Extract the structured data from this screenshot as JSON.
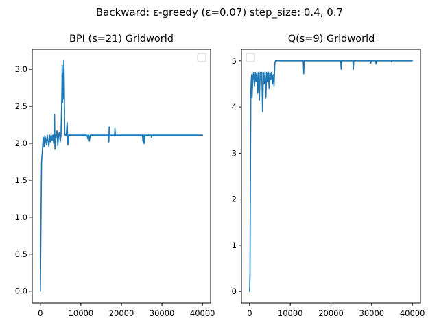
{
  "suptitle": "Backward: ε-greedy (ε=0.07) step_size: 0.4, 0.7",
  "colors": {
    "series": "#1f77b4"
  },
  "chart_data": [
    {
      "type": "line",
      "title": "BPI (s=21) Gridworld",
      "xlabel": "",
      "ylabel": "",
      "xlim": [
        -2000,
        42000
      ],
      "ylim": [
        -0.16,
        3.27
      ],
      "xticks": [
        0,
        10000,
        20000,
        30000,
        40000
      ],
      "xtick_labels": [
        "0",
        "10000",
        "20000",
        "30000",
        "40000"
      ],
      "yticks": [
        0.0,
        0.5,
        1.0,
        1.5,
        2.0,
        2.5,
        3.0
      ],
      "ytick_labels": [
        "0.0",
        "0.5",
        "1.0",
        "1.5",
        "2.0",
        "2.5",
        "3.0"
      ],
      "legend": "upper right, empty",
      "grid": false,
      "series": [
        {
          "x": [
            0,
            150,
            300,
            500,
            700,
            900,
            1100,
            1300,
            1500,
            1700,
            1900,
            2100,
            2300,
            2500,
            2700,
            2900,
            3100,
            3300,
            3500,
            3600,
            3700,
            3800,
            3900,
            4100,
            4300,
            4500,
            4700,
            4900,
            5100,
            5300,
            5400,
            5500,
            5600,
            5700,
            5800,
            5900,
            6000,
            6100,
            6200,
            6400,
            6600,
            6800,
            7000,
            7200,
            8000,
            10000,
            11500,
            11700,
            11900,
            12100,
            12300,
            12500,
            15000,
            16800,
            16900,
            17000,
            17100,
            17200,
            18000,
            18300,
            18400,
            18500,
            18600,
            20000,
            24000,
            25200,
            25300,
            25400,
            25500,
            25600,
            25700,
            25800,
            25900,
            26000,
            27000,
            27300,
            27400,
            27500,
            30000,
            35000,
            40000
          ],
          "y": [
            0.0,
            0.95,
            1.75,
            1.9,
            2.08,
            1.95,
            2.1,
            2.05,
            1.98,
            2.11,
            2.03,
            1.96,
            2.11,
            2.02,
            2.11,
            2.04,
            2.11,
            2.0,
            2.39,
            1.92,
            2.11,
            2.05,
            2.11,
            2.17,
            1.97,
            2.11,
            2.15,
            2.02,
            2.11,
            2.62,
            3.05,
            2.55,
            2.95,
            2.6,
            3.12,
            2.75,
            2.14,
            2.11,
            2.11,
            2.11,
            2.28,
            1.98,
            2.11,
            2.11,
            2.11,
            2.11,
            2.11,
            2.06,
            2.11,
            2.03,
            2.11,
            2.11,
            2.11,
            2.11,
            2.02,
            2.22,
            2.11,
            2.11,
            2.11,
            2.11,
            2.2,
            2.11,
            2.11,
            2.11,
            2.11,
            2.11,
            2.03,
            2.11,
            2.0,
            2.11,
            2.0,
            2.11,
            2.11,
            2.11,
            2.11,
            2.11,
            2.08,
            2.11,
            2.11,
            2.11,
            2.11
          ]
        }
      ]
    },
    {
      "type": "line",
      "title": "Q(s=9) Gridworld",
      "xlabel": "",
      "ylabel": "",
      "xlim": [
        -2000,
        42000
      ],
      "ylim": [
        -0.25,
        5.25
      ],
      "xticks": [
        0,
        10000,
        20000,
        30000,
        40000
      ],
      "xtick_labels": [
        "0",
        "10000",
        "20000",
        "30000",
        "40000"
      ],
      "yticks": [
        0,
        1,
        2,
        3,
        4,
        5
      ],
      "ytick_labels": [
        "0",
        "1",
        "2",
        "3",
        "4",
        "5"
      ],
      "legend": "upper left, empty",
      "grid": false,
      "series": [
        {
          "x": [
            0,
            100,
            200,
            300,
            400,
            500,
            600,
            800,
            1000,
            1200,
            1400,
            1600,
            1800,
            2000,
            2200,
            2400,
            2600,
            2800,
            3000,
            3200,
            3400,
            3600,
            3800,
            4000,
            4200,
            4400,
            4600,
            4800,
            5000,
            5200,
            5400,
            5600,
            5800,
            6000,
            6200,
            6400,
            6600,
            7000,
            8000,
            10000,
            13200,
            13300,
            13400,
            13500,
            15000,
            20000,
            22400,
            22500,
            22600,
            25000,
            25400,
            25500,
            25600,
            28000,
            29700,
            29800,
            29900,
            31000,
            31100,
            31200,
            34800,
            34900,
            35000,
            40000
          ],
          "y": [
            0.0,
            0.35,
            2.5,
            4.3,
            4.55,
            4.7,
            4.2,
            4.65,
            4.75,
            4.45,
            4.75,
            4.55,
            4.75,
            4.3,
            4.75,
            4.15,
            4.75,
            4.6,
            4.75,
            3.9,
            4.75,
            4.5,
            4.75,
            4.2,
            4.75,
            4.55,
            4.75,
            4.4,
            4.75,
            4.6,
            4.75,
            4.5,
            4.7,
            4.45,
            4.95,
            5.0,
            5.0,
            5.0,
            5.0,
            5.0,
            5.0,
            4.72,
            5.0,
            5.0,
            5.0,
            5.0,
            5.0,
            4.82,
            5.0,
            5.0,
            5.0,
            4.82,
            5.0,
            5.0,
            5.0,
            4.95,
            5.0,
            5.0,
            4.93,
            5.0,
            5.0,
            4.98,
            5.0,
            5.0
          ]
        }
      ]
    }
  ]
}
